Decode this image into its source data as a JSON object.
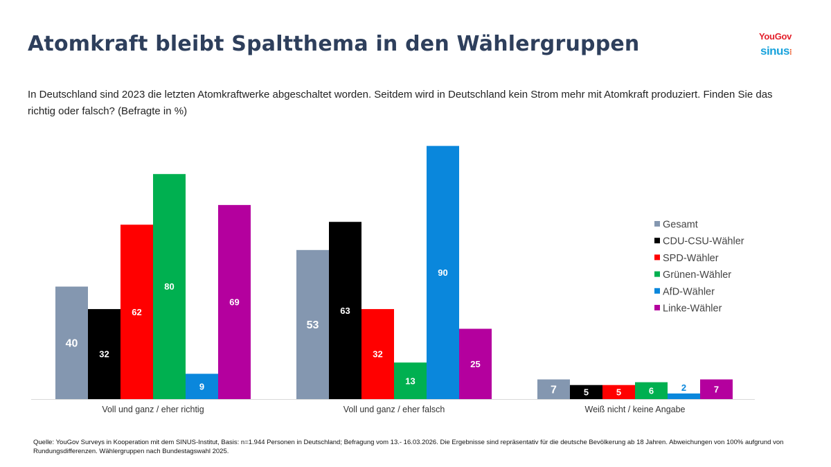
{
  "title": "Atomkraft bleibt Spaltthema in den Wählergruppen",
  "subtitle": "In Deutschland sind 2023 die letzten Atomkraftwerke abgeschaltet worden. Seitdem wird in Deutschland kein Strom mehr mit Atomkraft produziert. Finden Sie das richtig oder falsch? (Befragte in %)",
  "logos": {
    "yougov": "YouGov",
    "sinus": "sinus",
    "sinus_dots": "⁝"
  },
  "footer": "Quelle: YouGov Surveys in Kooperation mit dem SINUS-Institut, Basis: n=1.944 Personen in Deutschland; Befragung vom 13.- 16.03.2026. Die Ergebnisse sind repräsentativ für die deutsche Bevölkerung ab 18 Jahren. Abweichungen von 100% aufgrund von Rundungsdifferenzen. Wählergruppen nach Bundestagswahl 2025.",
  "chart_data": {
    "type": "bar",
    "title": "Atomkraft bleibt Spaltthema in den Wählergruppen",
    "xlabel": "",
    "ylabel": "",
    "ylim": [
      0,
      90
    ],
    "grid": false,
    "legend_position": "right",
    "categories": [
      "Voll und ganz / eher richtig",
      "Voll und ganz / eher falsch",
      "Weiß nicht / keine Angabe"
    ],
    "series": [
      {
        "name": "Gesamt",
        "color": "#8497b0",
        "values": [
          40,
          53,
          7
        ]
      },
      {
        "name": "CDU-CSU-Wähler",
        "color": "#000000",
        "values": [
          32,
          63,
          5
        ]
      },
      {
        "name": "SPD-Wähler",
        "color": "#ff0000",
        "values": [
          62,
          32,
          5
        ]
      },
      {
        "name": "Grünen-Wähler",
        "color": "#00b050",
        "values": [
          80,
          13,
          6
        ]
      },
      {
        "name": "AfD-Wähler",
        "color": "#0a87dc",
        "values": [
          9,
          90,
          2
        ]
      },
      {
        "name": "Linke-Wähler",
        "color": "#b4009e",
        "values": [
          69,
          25,
          7
        ]
      }
    ]
  }
}
